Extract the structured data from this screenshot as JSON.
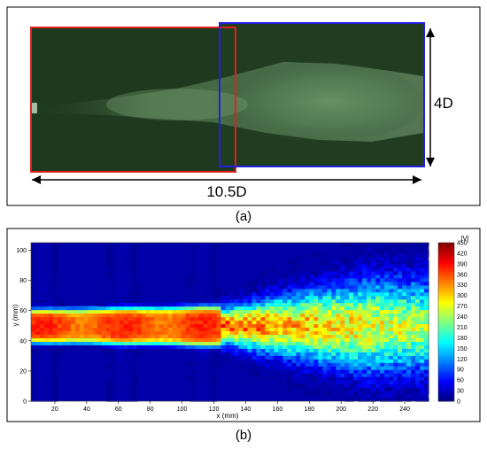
{
  "panel_a": {
    "label": "(a)",
    "width_label": "10.5D",
    "height_label": "4D",
    "colors": {
      "background": "#1e3a1e",
      "left_box": "#e02020",
      "right_box": "#2020e0",
      "frame": "#000000"
    }
  },
  "panel_b": {
    "label": "(b)",
    "xlabel": "x (mm)",
    "ylabel": "y (mm)",
    "colorbar_title": "|V|"
  },
  "chart_data": {
    "type": "heatmap",
    "title": "",
    "xlabel": "x (mm)",
    "ylabel": "y (mm)",
    "xlim": [
      5,
      255
    ],
    "ylim": [
      0,
      105
    ],
    "xticks": [
      "20",
      "40",
      "60",
      "80",
      "100",
      "120",
      "140",
      "160",
      "180",
      "200",
      "220",
      "240"
    ],
    "yticks": [
      "0",
      "20",
      "40",
      "60",
      "80",
      "100"
    ],
    "colorbar": {
      "title": "|V|",
      "range": [
        0,
        450
      ],
      "ticks": [
        "450",
        "420",
        "390",
        "360",
        "330",
        "300",
        "270",
        "240",
        "210",
        "180",
        "150",
        "120",
        "90",
        "60",
        "30",
        "0"
      ]
    },
    "jet": {
      "centerline_y": 50,
      "core_region_x": [
        5,
        125
      ],
      "core_speed": 360,
      "core_halfwidth": 11,
      "spread_start_x": 125,
      "far_halfwidth": 28,
      "far_speed": 240
    },
    "grid": false
  }
}
